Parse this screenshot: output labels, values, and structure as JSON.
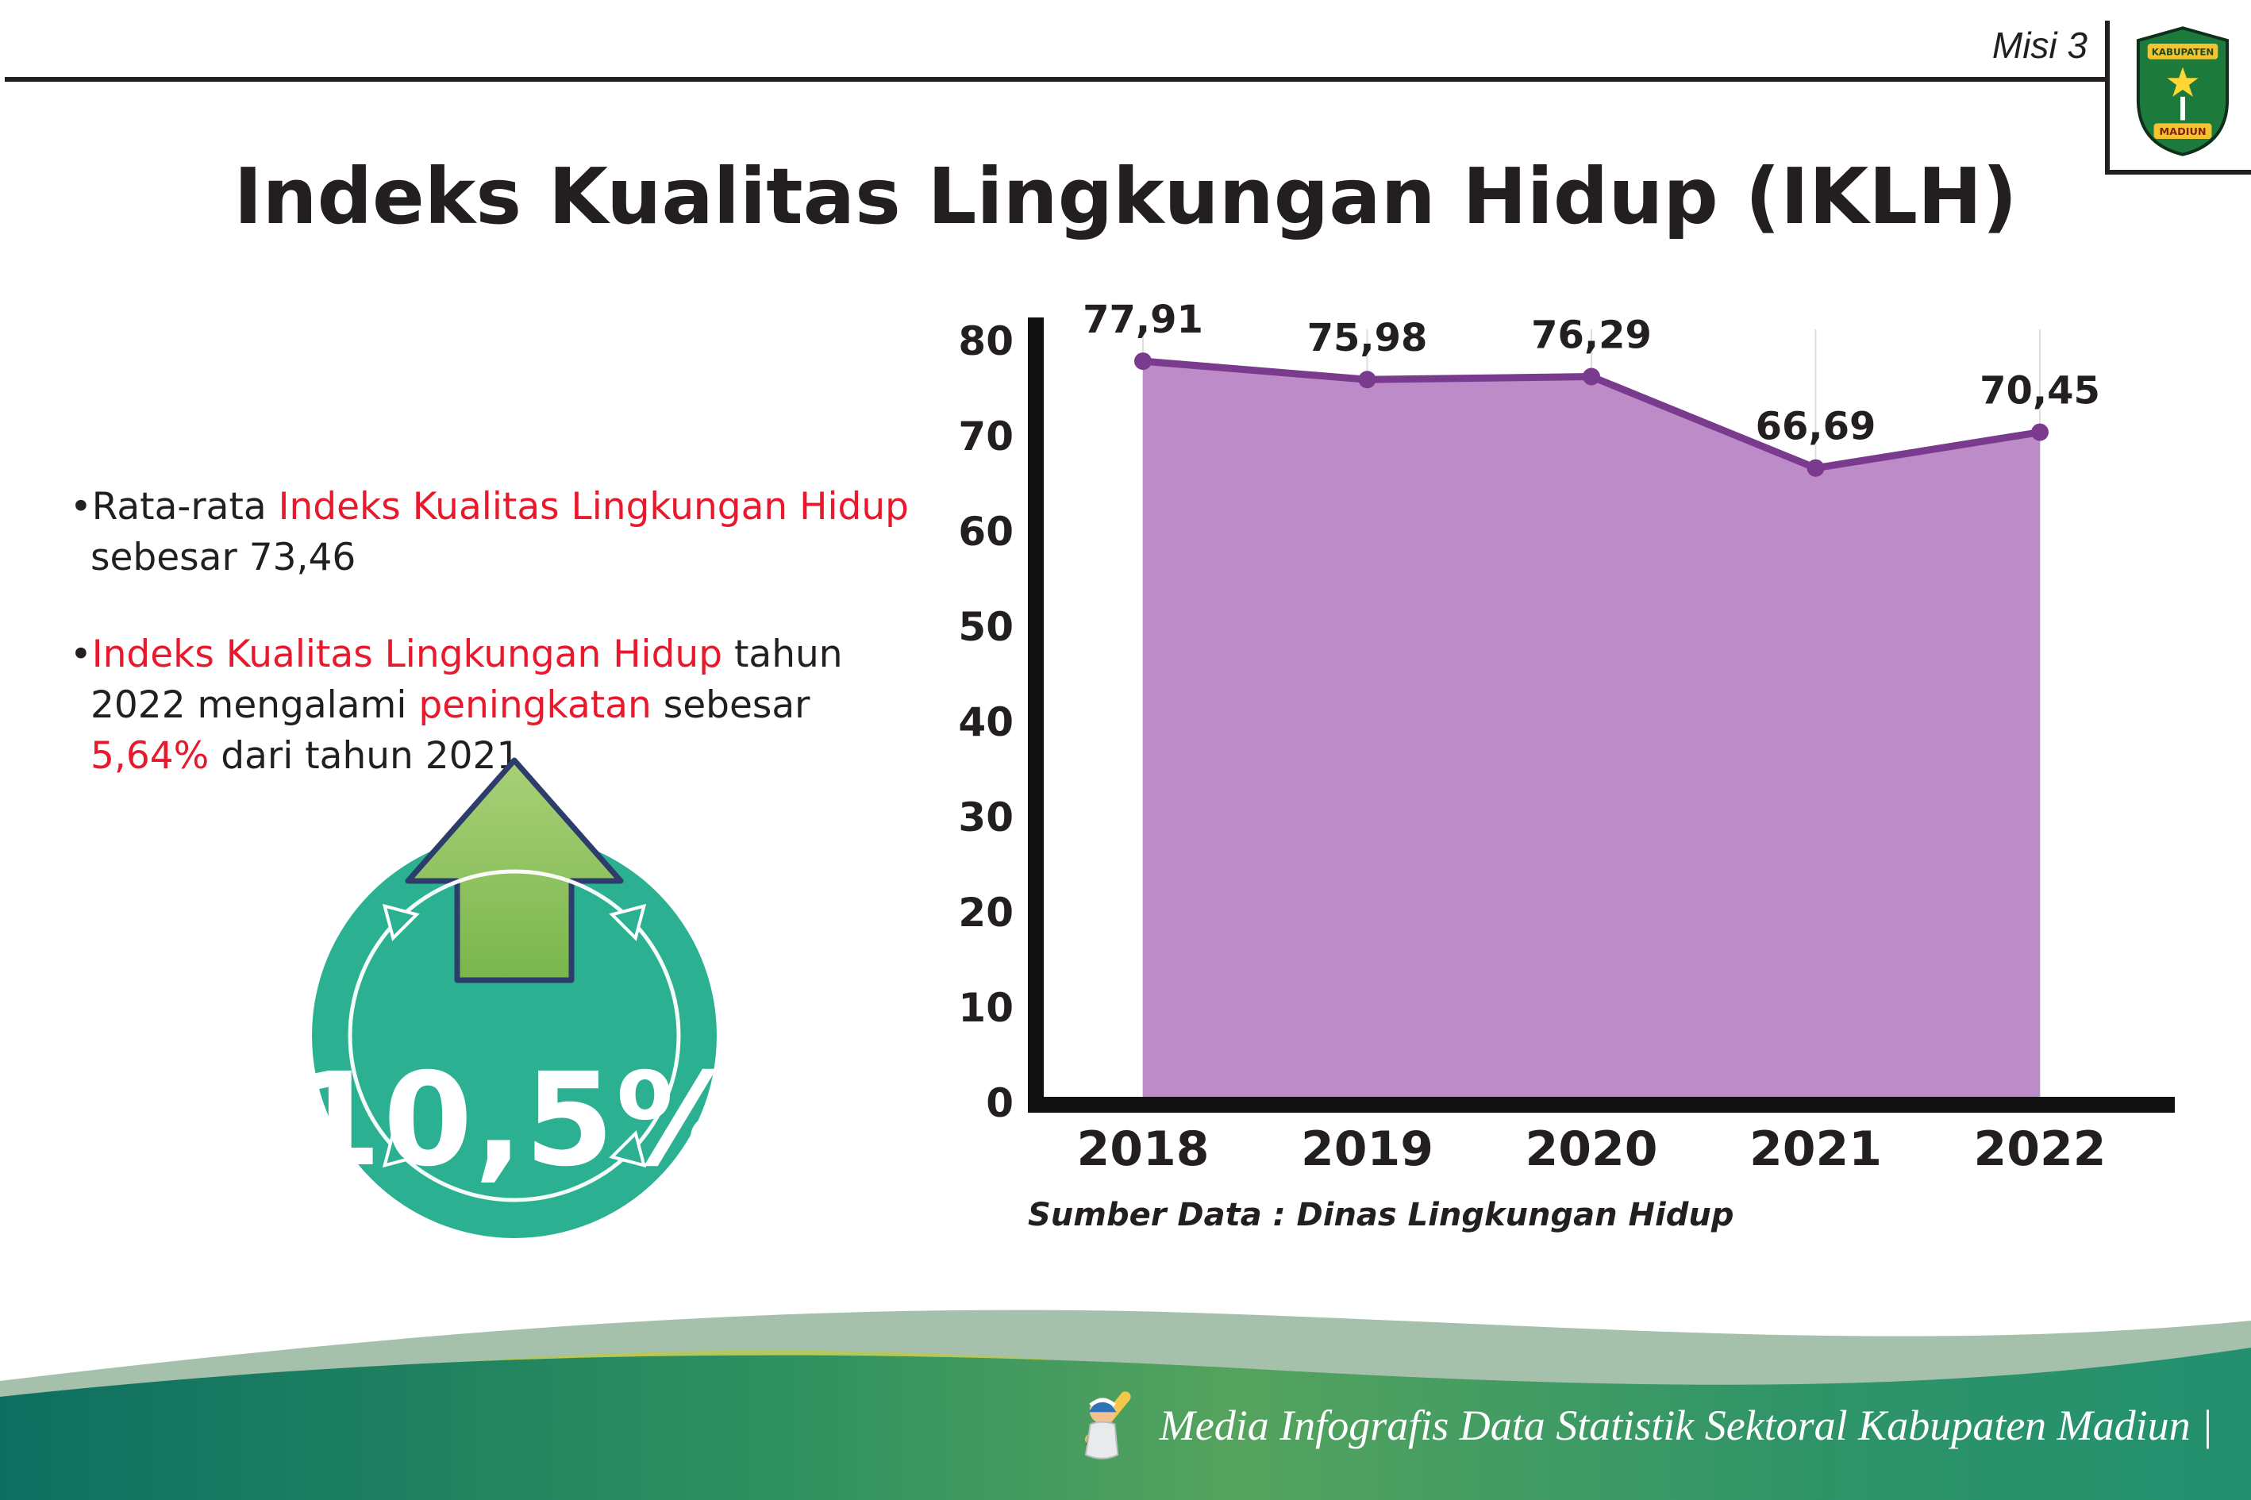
{
  "colors": {
    "dark": "#231f20",
    "red": "#e8192c",
    "teal_badge": "#2bb192",
    "arrow_green": "#8cc155",
    "arrow_outline": "#2d3d6b",
    "footer_teal": "#0f7c68",
    "footer_green": "#52a15e"
  },
  "header": {
    "misi_label": "Misi 3",
    "title": "Indeks Kualitas Lingkungan Hidup (IKLH)",
    "logo_top": "KABUPATEN",
    "logo_bottom": "MADIUN"
  },
  "bullets": {
    "marker": "•",
    "item1": {
      "t1": "Rata-rata ",
      "red1": "Indeks Kualitas Lingkungan Hidup",
      "t2": " sebesar 73,46"
    },
    "item2": {
      "red1": "Indeks Kualitas Lingkungan Hidup",
      "t1": " tahun 2022 mengalami ",
      "red2": "peningkatan",
      "t2": " sebesar ",
      "red3": "5,64%",
      "t3": " dari tahun 2021"
    }
  },
  "badge": {
    "value": "10,5%",
    "icon": "up-arrow"
  },
  "chart_data": {
    "type": "area",
    "categories": [
      "2018",
      "2019",
      "2020",
      "2021",
      "2022"
    ],
    "values": [
      77.91,
      75.98,
      76.29,
      66.69,
      70.45
    ],
    "value_labels": [
      "77,91",
      "75,98",
      "76,29",
      "66,69",
      "70,45"
    ],
    "title": "",
    "xlabel": "",
    "ylabel": "",
    "ylim": [
      0,
      80
    ],
    "ytick_step": 10,
    "grid": "vertical-light",
    "legend": "none",
    "line_color": "#7a3a8e",
    "fill_color": "#bd8cc8"
  },
  "source_note": "Sumber Data : Dinas Lingkungan Hidup",
  "footer": {
    "text": "Media Infografis Data Statistik Sektoral Kabupaten Madiun |"
  }
}
